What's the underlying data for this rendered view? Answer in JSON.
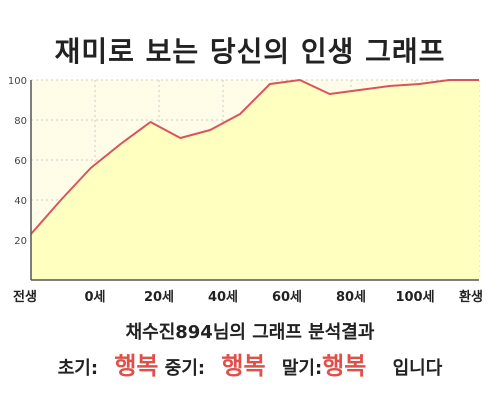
{
  "title": "재미로 보는 당신의 인생 그래프",
  "chart_data": {
    "type": "area",
    "title": "재미로 보는 당신의 인생 그래프",
    "x_tick_labels": [
      "전생",
      "0세",
      "20세",
      "40세",
      "60세",
      "80세",
      "100세",
      "환생"
    ],
    "y_ticks": [
      20,
      40,
      60,
      80,
      100
    ],
    "ylim": [
      0,
      100
    ],
    "grid": true,
    "x": [
      0,
      1,
      2,
      3,
      4,
      5,
      6,
      7,
      8,
      9,
      10,
      11,
      12,
      13,
      14,
      15
    ],
    "values": [
      23,
      40,
      56,
      68,
      79,
      71,
      75,
      83,
      98,
      100,
      93,
      95,
      97,
      98,
      100,
      100
    ],
    "colors": {
      "fill": "#ffffc0",
      "line": "#d9545a",
      "grid": "#cccccc",
      "axis": "#555555",
      "background": "#fffde8"
    }
  },
  "summary": {
    "text": "채수진894님의 그래프 분석결과"
  },
  "result": {
    "early_label": "초기:",
    "early_value": "행복",
    "mid_label": "중기:",
    "mid_value": "행복",
    "late_label": "말기:",
    "late_value": "행복",
    "suffix": "입니다"
  }
}
